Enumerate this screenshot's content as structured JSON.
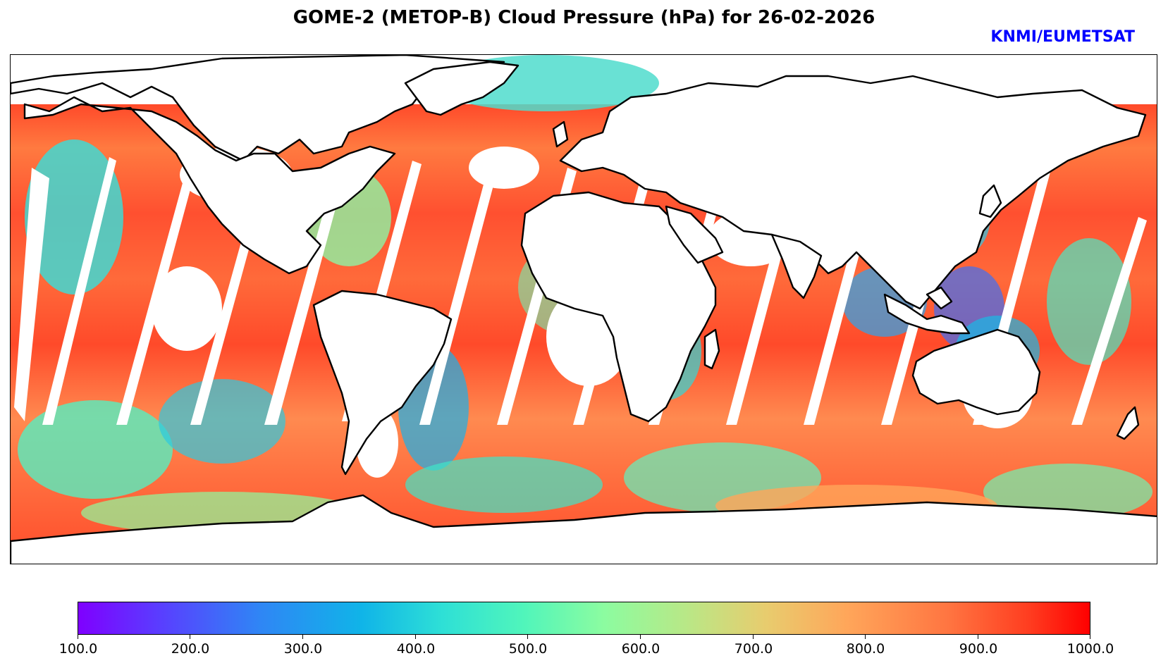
{
  "title": "GOME-2 (METOP-B) Cloud Pressure (hPa) for 26-02-2026",
  "credit": "KNMI/EUMETSAT",
  "map": {
    "projection": "plate carree",
    "extent_lon": [
      -180,
      180
    ],
    "extent_lat": [
      -90,
      90
    ],
    "coastline_color": "#000000",
    "no_data_color": "#ffffff",
    "variable": "Cloud Pressure",
    "units": "hPa",
    "swath_gap_count": 14
  },
  "colorbar": {
    "min": 100.0,
    "max": 1000.0,
    "colormap": "rainbow",
    "tick_labels": [
      "100.0",
      "200.0",
      "300.0",
      "400.0",
      "500.0",
      "600.0",
      "700.0",
      "800.0",
      "900.0",
      "1000.0"
    ]
  }
}
